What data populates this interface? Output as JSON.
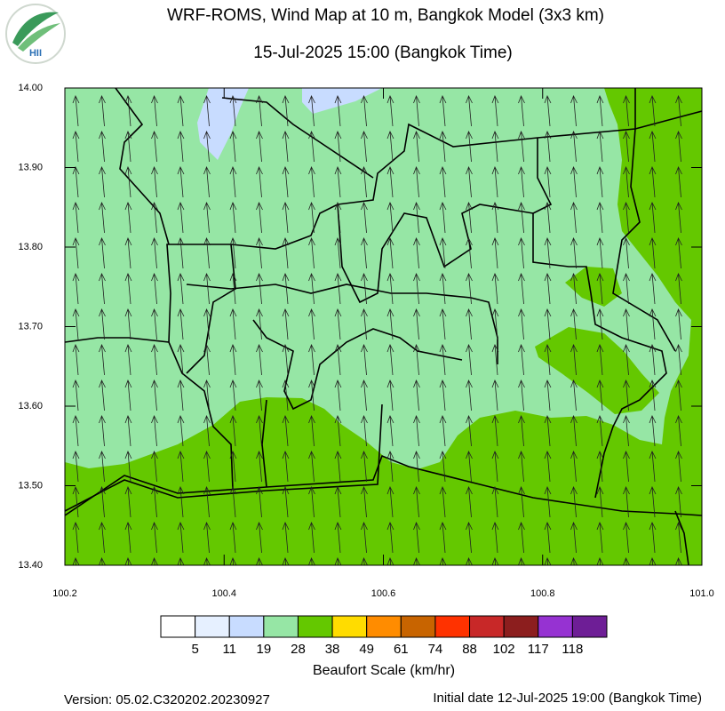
{
  "map": {
    "title": "WRF-ROMS, Wind Map at 10 m, Bangkok Model (3x3 km)",
    "subtitle": "15-Jul-2025 15:00 (Bangkok Time)",
    "logo_text": "HII",
    "xlim": [
      100.2,
      {
        "value": 101,
        "label": "101.0"
      }
    ],
    "ylim": [
      {
        "value": 13.4,
        "label": "13.40"
      },
      {
        "value": 14,
        "label": "14.00"
      }
    ],
    "xticks": [
      100.2,
      100.4,
      100.6,
      100.8,
      {
        "value": 101,
        "label": "101.0"
      }
    ],
    "yticks": [
      {
        "value": 13.4,
        "label": "13.40"
      },
      {
        "value": 13.5,
        "label": "13.50"
      },
      {
        "value": 13.6,
        "label": "13.60"
      },
      {
        "value": 13.7,
        "label": "13.70"
      },
      {
        "value": 13.8,
        "label": "13.80"
      },
      {
        "value": 13.9,
        "label": "13.90"
      },
      {
        "value": 14,
        "label": "14.00"
      }
    ],
    "colorbar": {
      "label": "Beaufort Scale (km/hr)",
      "colors": [
        "#ffffff",
        "#e6f0ff",
        "#c8dcff",
        "#96e6a5",
        "#64c800",
        "#ffdc00",
        "#ff8c00",
        "#c86400",
        "#ff3200",
        "#c82828",
        "#8c1e1e",
        "#9632d2",
        "#6e1e96"
      ],
      "levels": [
        5,
        11,
        19,
        28,
        38,
        49,
        61,
        74,
        88,
        102,
        117,
        118
      ]
    },
    "version": "Version: 05.02.C320202.20230927",
    "initial_date": "Initial date 12-Jul-2025 19:00 (Bangkok Time)"
  }
}
